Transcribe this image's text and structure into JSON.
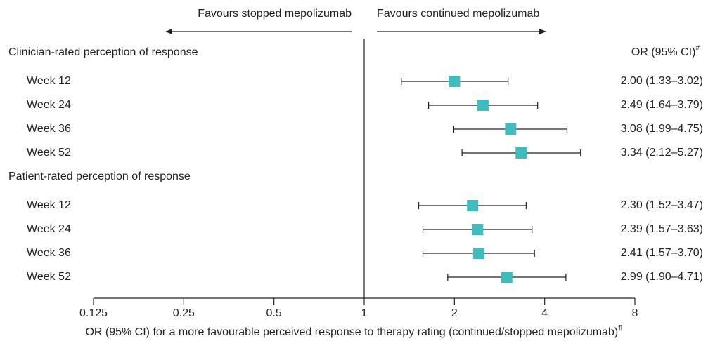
{
  "chart_data": {
    "type": "forest",
    "annotations": [
      "Favours stopped mepolizumab",
      "Favours continued mepolizumab"
    ],
    "column_header": "OR (95% CI)",
    "column_header_mark": "#",
    "xlabel": "OR (95% CI) for a more favourable perceived response to therapy rating (continued/stopped mepolizumab)",
    "xlabel_mark": "¶",
    "log_scale": true,
    "base": 2,
    "xlim": [
      0.125,
      8
    ],
    "xticks": [
      0.125,
      0.25,
      0.5,
      1,
      2,
      4,
      8
    ],
    "reference": 1,
    "color": "#3dbdbd",
    "groups": [
      {
        "name": "Clinician-rated perception of response",
        "categories": [
          "Week 12",
          "Week 24",
          "Week 36",
          "Week 52"
        ],
        "values": [
          2.0,
          2.49,
          3.08,
          3.34
        ],
        "lower": [
          1.33,
          1.64,
          1.99,
          2.12
        ],
        "upper": [
          3.02,
          3.79,
          4.75,
          5.27
        ],
        "value_labels": [
          "2.00 (1.33–3.02)",
          "2.49 (1.64–3.79)",
          "3.08 (1.99–4.75)",
          "3.34 (2.12–5.27)"
        ]
      },
      {
        "name": "Patient-rated perception of response",
        "categories": [
          "Week 12",
          "Week 24",
          "Week 36",
          "Week 52"
        ],
        "values": [
          2.3,
          2.39,
          2.41,
          2.99
        ],
        "lower": [
          1.52,
          1.57,
          1.57,
          1.9
        ],
        "upper": [
          3.47,
          3.63,
          3.7,
          4.71
        ],
        "value_labels": [
          "2.30 (1.52–3.47)",
          "2.39 (1.57–3.63)",
          "2.41 (1.57–3.70)",
          "2.99 (1.90–4.71)"
        ]
      }
    ]
  }
}
